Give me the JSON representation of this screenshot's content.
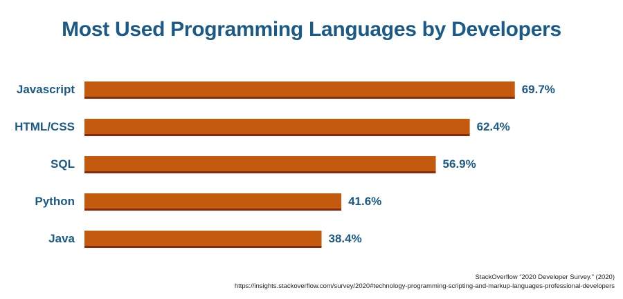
{
  "title": "Most Used Programming Languages by Developers",
  "chart_data": {
    "type": "bar",
    "orientation": "horizontal",
    "title": "Most Used Programming Languages by Developers",
    "categories": [
      "Javascript",
      "HTML/CSS",
      "SQL",
      "Python",
      "Java"
    ],
    "values": [
      69.7,
      62.4,
      56.9,
      41.6,
      38.4
    ],
    "data_labels": [
      "69.7%",
      "62.4%",
      "56.9%",
      "41.6%",
      "38.4%"
    ],
    "xlabel": "",
    "ylabel": "",
    "xlim": [
      0,
      100
    ],
    "grid": false,
    "legend": "none"
  },
  "colors": {
    "bar": "#c45a0e",
    "bar_shadow": "#8a2a08",
    "text": "#1b5a86"
  },
  "source": {
    "line1": "StackOverflow “2020 Developer Survey.” (2020)",
    "line2": "https://insights.stackoverflow.com/survey/2020#technology-programming-scripting-and-markup-languages-professional-developers"
  }
}
